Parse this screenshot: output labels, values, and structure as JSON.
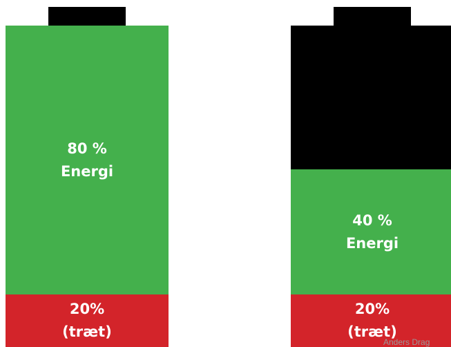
{
  "colors": {
    "energy": "#44b04c",
    "tired": "#d3242a",
    "empty": "#000000",
    "text": "#ffffff"
  },
  "batteries": [
    {
      "energy_level": 0.8,
      "tired_level": 0.2,
      "energy_label": "80 %",
      "energy_word": "Energi",
      "tired_label": "20%",
      "tired_word": "(træt)"
    },
    {
      "energy_level": 0.4,
      "tired_level": 0.2,
      "energy_label": "40 %",
      "energy_word": "Energi",
      "tired_label": "20%",
      "tired_word": "(træt)"
    }
  ],
  "watermark": "Anders Drag"
}
